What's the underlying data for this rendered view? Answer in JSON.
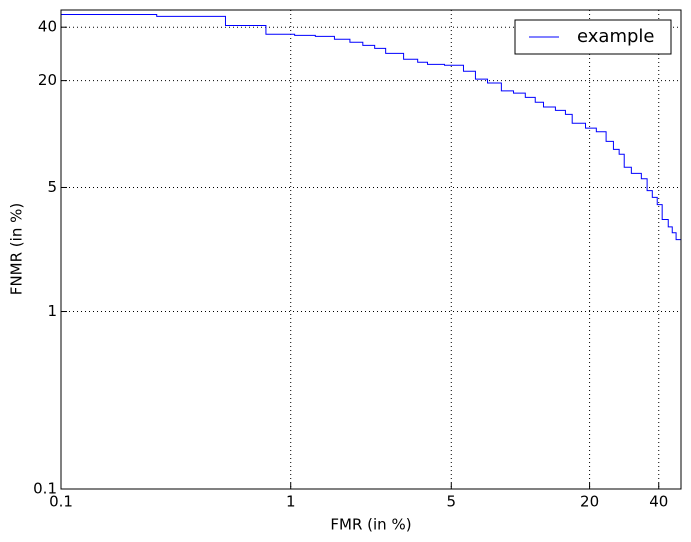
{
  "chart_data": {
    "type": "line",
    "drawstyle": "steps-post",
    "xlabel": "FMR (in %)",
    "ylabel": "FNMR (in %)",
    "xscale": "log",
    "yscale": "log",
    "grid": true,
    "legend": "upper right",
    "xlim": [
      0.1,
      50
    ],
    "ylim": [
      0.1,
      50
    ],
    "xticks": [
      0.1,
      1,
      5,
      20,
      40
    ],
    "yticks": [
      0.1,
      1,
      5,
      20,
      40
    ],
    "x": [
      0.1,
      0.261,
      0.52,
      0.78,
      1.04,
      1.28,
      1.55,
      1.81,
      2.06,
      2.32,
      2.59,
      3.1,
      3.57,
      3.94,
      4.67,
      5.65,
      6.37,
      7.19,
      8.26,
      9.33,
      10.5,
      11.6,
      12.6,
      14.2,
      15.7,
      16.8,
      19.2,
      21.4,
      23.6,
      25.4,
      26.9,
      28.3,
      30.4,
      33.6,
      35.6,
      37.5,
      39.4,
      41.4,
      44.0,
      45.8,
      47.6,
      50
    ],
    "series": [
      {
        "name": "example",
        "color": "#0000ff",
        "values": [
          47.2,
          46.0,
          40.9,
          36.5,
          36.0,
          35.5,
          34.2,
          32.9,
          31.6,
          30.4,
          28.5,
          26.4,
          25.4,
          24.7,
          24.4,
          22.6,
          20.4,
          19.4,
          17.5,
          17.0,
          16.1,
          15.1,
          14.2,
          13.6,
          12.9,
          11.5,
          10.8,
          10.3,
          9.1,
          8.2,
          7.7,
          6.5,
          6.0,
          5.6,
          4.8,
          4.4,
          4.0,
          3.3,
          3.0,
          2.78,
          2.54,
          2.54
        ]
      }
    ]
  }
}
